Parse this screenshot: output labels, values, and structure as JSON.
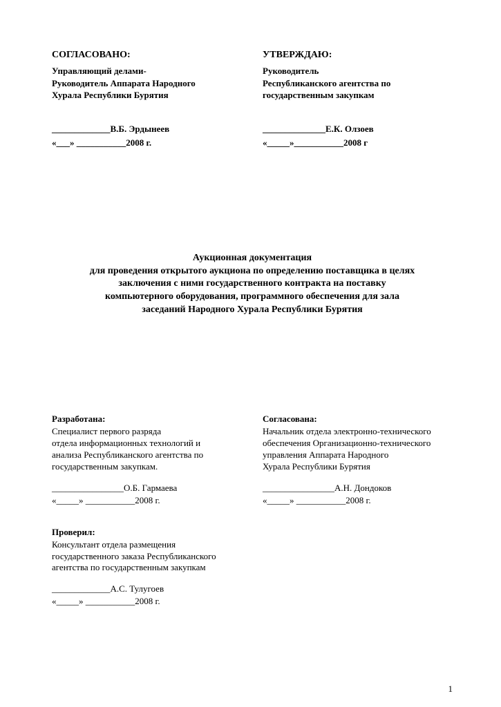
{
  "header": {
    "left": {
      "label": "СОГЛАСОВАНО:",
      "position": "Управляющий делами-\nРуководитель Аппарата Народного\nХурала Республики Бурятия",
      "sign_line1": "_____________В.Б. Эрдынеев",
      "sign_line2": "«___» ___________2008 г."
    },
    "right": {
      "label": "УТВЕРЖДАЮ:",
      "position": "Руководитель\nРеспубликанского агентства по\nгосударственным закупкам",
      "sign_line1": "______________Е.К. Олзоев",
      "sign_line2": "«_____»___________2008 г"
    }
  },
  "title": "Аукционная документация\nдля проведения открытого аукциона по определению поставщика в целях\nзаключения с ними государственного  контракта на поставку\nкомпьютерного оборудования, программного обеспечения для зала\nзаседаний Народного Хурала Республики Бурятия",
  "developed": {
    "label": "Разработана:",
    "text": "Специалист первого разряда\nотдела информационных технологий и\nанализа Республиканского агентства по\nгосударственным закупкам.",
    "sign_line1": "________________О.Б. Гармаева",
    "sign_line2": "«_____» ___________2008 г."
  },
  "agreed": {
    "label": "Согласована:",
    "text": "Начальник отдела электронно-технического\nобеспечения Организационно-технического\nуправления Аппарата Народного\nХурала Республики Бурятия",
    "sign_line1": "________________А.Н. Дондоков",
    "sign_line2": "«_____» ___________2008 г."
  },
  "checked": {
    "label": "Проверил:",
    "text": "Консультант отдела размещения\nгосударственного заказа Республиканского\nагентства по государственным закупкам",
    "sign_line1": "_____________А.С. Тулугоев",
    "sign_line2": "«_____» ___________2008 г."
  },
  "page_number": "1"
}
